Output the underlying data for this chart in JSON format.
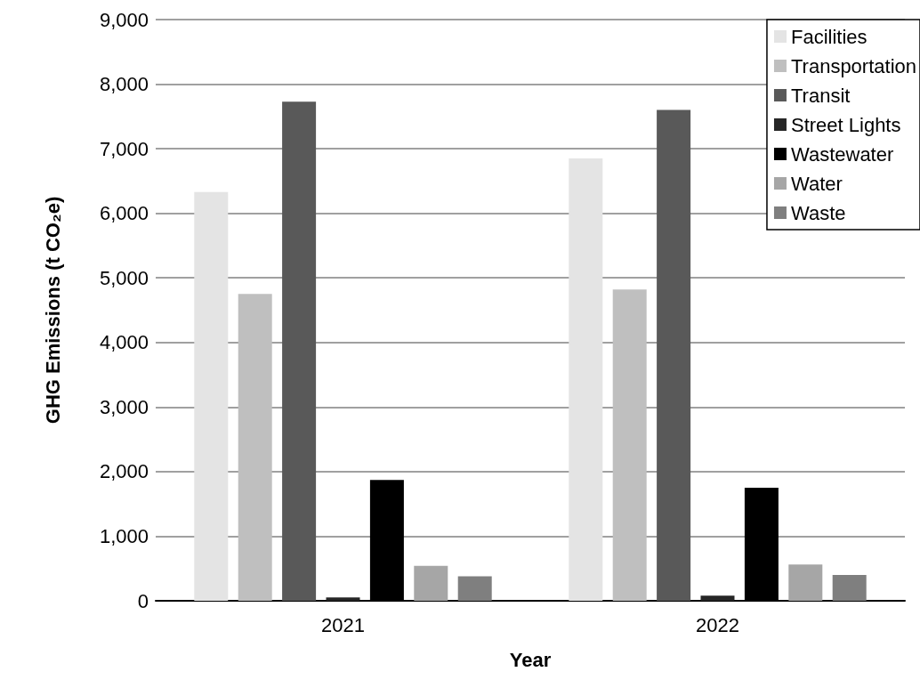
{
  "chart_data": {
    "type": "bar",
    "xlabel": "Year",
    "ylabel": "GHG Emissions (t CO₂e)",
    "categories": [
      "2021",
      "2022"
    ],
    "series": [
      {
        "name": "Facilities",
        "color": "#e4e4e4",
        "values": [
          6330,
          6850
        ]
      },
      {
        "name": "Transportation",
        "color": "#bfbfbf",
        "values": [
          4750,
          4820
        ]
      },
      {
        "name": "Transit",
        "color": "#595959",
        "values": [
          7730,
          7600
        ]
      },
      {
        "name": "Street Lights",
        "color": "#262626",
        "values": [
          50,
          80
        ]
      },
      {
        "name": "Wastewater",
        "color": "#000000",
        "values": [
          1870,
          1750
        ]
      },
      {
        "name": "Water",
        "color": "#a6a6a6",
        "values": [
          540,
          560
        ]
      },
      {
        "name": "Waste",
        "color": "#7f7f7f",
        "values": [
          380,
          400
        ]
      }
    ],
    "ylim": [
      0,
      9000
    ],
    "yticks": [
      0,
      {
        "value": 1000,
        "label": "1,000"
      },
      {
        "value": 2000,
        "label": "2,000"
      },
      {
        "value": 3000,
        "label": "3,000"
      },
      {
        "value": 4000,
        "label": "4,000"
      },
      {
        "value": 5000,
        "label": "5,000"
      },
      {
        "value": 6000,
        "label": "6,000"
      },
      {
        "value": 7000,
        "label": "7,000"
      },
      {
        "value": 8000,
        "label": "8,000"
      },
      {
        "value": 9000,
        "label": "9,000"
      }
    ],
    "grid": "y",
    "legend": "top right"
  }
}
